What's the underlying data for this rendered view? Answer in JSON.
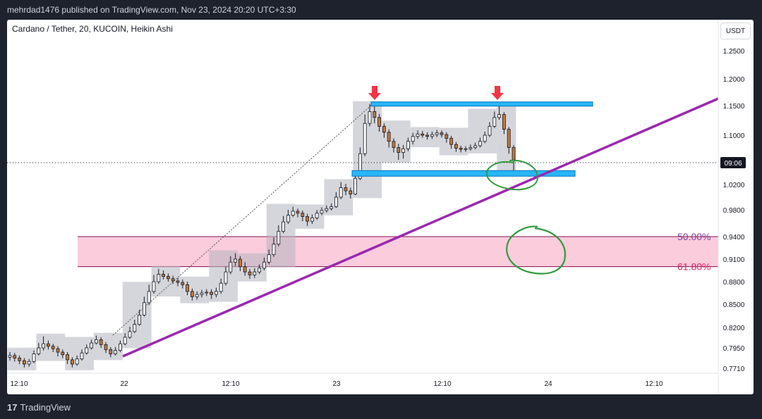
{
  "header": {
    "publish_line": "mehrdad1476 published on TradingView.com, Nov 23, 2024 20:20 UTC+3:30"
  },
  "chart": {
    "symbol_title": "Cardano / Tether, 20, KUCOIN, Heikin Ashi",
    "currency": "USDT",
    "current_price_label": "09:06",
    "fib_labels": {
      "fib_50": "50.00%",
      "fib_618": "61.80%"
    },
    "colors": {
      "up": "#26a69a",
      "down": "#c47a3a",
      "candle": "#131722",
      "trendline": "#9c27b0",
      "zone_fill": "#f8bbd0",
      "zone_border": "#880e4f",
      "box_blue": "#29b6f6",
      "arrow_red": "#f23645",
      "circle_green": "#2e9b3a",
      "gray_band": "#b2b5be",
      "fib50_text": "#7b3fa0",
      "fib618_text": "#e91e63"
    }
  },
  "price_axis": {
    "ticks": [
      "1.2500",
      "1.2000",
      "1.1500",
      "1.1000",
      "1.0200",
      "0.9800",
      "0.9400",
      "0.9100",
      "0.8800",
      "0.8500",
      "0.8200",
      "0.7950",
      "0.7710"
    ]
  },
  "time_axis": {
    "ticks": [
      "12:10",
      "22",
      "12:10",
      "23",
      "12:10",
      "24",
      "12:10"
    ]
  },
  "footer": {
    "brand": "TradingView"
  },
  "chart_data": {
    "type": "candlestick",
    "title": "Cardano / Tether, 20, KUCOIN, Heikin Ashi",
    "y_unit": "USDT",
    "price_ticks": [
      1.25,
      1.2,
      1.15,
      1.1,
      1.02,
      0.98,
      0.94,
      0.91,
      0.88,
      0.85,
      0.82,
      0.795,
      0.771
    ],
    "time_ticks": [
      "12:10",
      "22",
      "12:10",
      "23",
      "12:10",
      "24",
      "12:10"
    ],
    "levels": {
      "resistance": 1.153,
      "support": 1.038,
      "fib_50": 0.94,
      "fib_618": 0.9
    },
    "candles": [
      [
        0.784,
        0.786,
        0.79,
        0.78
      ],
      [
        0.786,
        0.783,
        0.789,
        0.779
      ],
      [
        0.783,
        0.78,
        0.786,
        0.776
      ],
      [
        0.78,
        0.776,
        0.783,
        0.772
      ],
      [
        0.776,
        0.779,
        0.782,
        0.773
      ],
      [
        0.779,
        0.788,
        0.792,
        0.777
      ],
      [
        0.788,
        0.795,
        0.801,
        0.786
      ],
      [
        0.795,
        0.8,
        0.809,
        0.792
      ],
      [
        0.8,
        0.797,
        0.804,
        0.793
      ],
      [
        0.797,
        0.794,
        0.8,
        0.79
      ],
      [
        0.794,
        0.79,
        0.797,
        0.785
      ],
      [
        0.79,
        0.787,
        0.793,
        0.783
      ],
      [
        0.787,
        0.781,
        0.79,
        0.776
      ],
      [
        0.781,
        0.776,
        0.784,
        0.772
      ],
      [
        0.776,
        0.782,
        0.786,
        0.774
      ],
      [
        0.782,
        0.789,
        0.793,
        0.78
      ],
      [
        0.789,
        0.795,
        0.799,
        0.787
      ],
      [
        0.795,
        0.801,
        0.805,
        0.793
      ],
      [
        0.801,
        0.805,
        0.81,
        0.799
      ],
      [
        0.805,
        0.799,
        0.808,
        0.795
      ],
      [
        0.799,
        0.793,
        0.802,
        0.789
      ],
      [
        0.793,
        0.788,
        0.796,
        0.784
      ],
      [
        0.788,
        0.792,
        0.796,
        0.786
      ],
      [
        0.792,
        0.8,
        0.804,
        0.79
      ],
      [
        0.8,
        0.808,
        0.813,
        0.798
      ],
      [
        0.808,
        0.815,
        0.821,
        0.806
      ],
      [
        0.815,
        0.824,
        0.83,
        0.813
      ],
      [
        0.824,
        0.836,
        0.843,
        0.822
      ],
      [
        0.836,
        0.852,
        0.86,
        0.834
      ],
      [
        0.852,
        0.867,
        0.876,
        0.849
      ],
      [
        0.867,
        0.88,
        0.889,
        0.864
      ],
      [
        0.88,
        0.89,
        0.897,
        0.877
      ],
      [
        0.89,
        0.887,
        0.895,
        0.883
      ],
      [
        0.887,
        0.884,
        0.891,
        0.88
      ],
      [
        0.884,
        0.881,
        0.888,
        0.877
      ],
      [
        0.881,
        0.879,
        0.885,
        0.874
      ],
      [
        0.879,
        0.876,
        0.883,
        0.871
      ],
      [
        0.876,
        0.867,
        0.88,
        0.862
      ],
      [
        0.867,
        0.86,
        0.871,
        0.855
      ],
      [
        0.86,
        0.863,
        0.867,
        0.856
      ],
      [
        0.863,
        0.865,
        0.869,
        0.859
      ],
      [
        0.865,
        0.866,
        0.87,
        0.861
      ],
      [
        0.866,
        0.863,
        0.87,
        0.857
      ],
      [
        0.863,
        0.867,
        0.872,
        0.859
      ],
      [
        0.867,
        0.878,
        0.884,
        0.864
      ],
      [
        0.878,
        0.893,
        0.9,
        0.875
      ],
      [
        0.893,
        0.906,
        0.914,
        0.89
      ],
      [
        0.906,
        0.91,
        0.918,
        0.901
      ],
      [
        0.91,
        0.9,
        0.914,
        0.894
      ],
      [
        0.9,
        0.893,
        0.906,
        0.888
      ],
      [
        0.893,
        0.889,
        0.897,
        0.884
      ],
      [
        0.889,
        0.893,
        0.898,
        0.885
      ],
      [
        0.893,
        0.898,
        0.903,
        0.89
      ],
      [
        0.898,
        0.906,
        0.912,
        0.895
      ],
      [
        0.906,
        0.916,
        0.923,
        0.903
      ],
      [
        0.916,
        0.93,
        0.939,
        0.913
      ],
      [
        0.93,
        0.948,
        0.957,
        0.927
      ],
      [
        0.948,
        0.962,
        0.971,
        0.945
      ],
      [
        0.962,
        0.972,
        0.98,
        0.959
      ],
      [
        0.972,
        0.978,
        0.985,
        0.969
      ],
      [
        0.978,
        0.975,
        0.982,
        0.969
      ],
      [
        0.975,
        0.97,
        0.979,
        0.963
      ],
      [
        0.97,
        0.963,
        0.974,
        0.956
      ],
      [
        0.963,
        0.968,
        0.973,
        0.959
      ],
      [
        0.968,
        0.975,
        0.98,
        0.965
      ],
      [
        0.975,
        0.979,
        0.984,
        0.972
      ],
      [
        0.979,
        0.982,
        0.987,
        0.976
      ],
      [
        0.982,
        0.985,
        0.99,
        0.979
      ],
      [
        0.985,
        1.0,
        1.008,
        0.983
      ],
      [
        1.0,
        1.015,
        1.024,
        0.997
      ],
      [
        1.015,
        1.01,
        1.021,
        1.003
      ],
      [
        1.01,
        1.005,
        1.015,
        0.998
      ],
      [
        1.005,
        1.03,
        1.04,
        1.003
      ],
      [
        1.03,
        1.07,
        1.08,
        1.027
      ],
      [
        1.07,
        1.12,
        1.135,
        1.066
      ],
      [
        1.12,
        1.14,
        1.153,
        1.115
      ],
      [
        1.14,
        1.13,
        1.15,
        1.12
      ],
      [
        1.13,
        1.115,
        1.136,
        1.106
      ],
      [
        1.115,
        1.105,
        1.12,
        1.096
      ],
      [
        1.105,
        1.09,
        1.11,
        1.08
      ],
      [
        1.09,
        1.08,
        1.095,
        1.072
      ],
      [
        1.08,
        1.072,
        1.086,
        1.06
      ],
      [
        1.072,
        1.078,
        1.084,
        1.062
      ],
      [
        1.078,
        1.09,
        1.096,
        1.074
      ],
      [
        1.09,
        1.098,
        1.104,
        1.085
      ],
      [
        1.098,
        1.102,
        1.108,
        1.094
      ],
      [
        1.102,
        1.1,
        1.107,
        1.096
      ],
      [
        1.1,
        1.098,
        1.105,
        1.093
      ],
      [
        1.098,
        1.101,
        1.106,
        1.094
      ],
      [
        1.101,
        1.104,
        1.109,
        1.097
      ],
      [
        1.104,
        1.101,
        1.108,
        1.096
      ],
      [
        1.101,
        1.095,
        1.105,
        1.088
      ],
      [
        1.095,
        1.085,
        1.099,
        1.078
      ],
      [
        1.085,
        1.079,
        1.089,
        1.073
      ],
      [
        1.079,
        1.077,
        1.083,
        1.072
      ],
      [
        1.077,
        1.078,
        1.082,
        1.073
      ],
      [
        1.078,
        1.08,
        1.085,
        1.075
      ],
      [
        1.08,
        1.083,
        1.088,
        1.077
      ],
      [
        1.083,
        1.09,
        1.096,
        1.08
      ],
      [
        1.09,
        1.1,
        1.106,
        1.087
      ],
      [
        1.1,
        1.115,
        1.122,
        1.097
      ],
      [
        1.115,
        1.13,
        1.14,
        1.112
      ],
      [
        1.13,
        1.135,
        1.15,
        1.126
      ],
      [
        1.135,
        1.11,
        1.139,
        1.102
      ],
      [
        1.11,
        1.08,
        1.114,
        1.07
      ],
      [
        1.08,
        1.06,
        1.084,
        1.04
      ]
    ]
  }
}
